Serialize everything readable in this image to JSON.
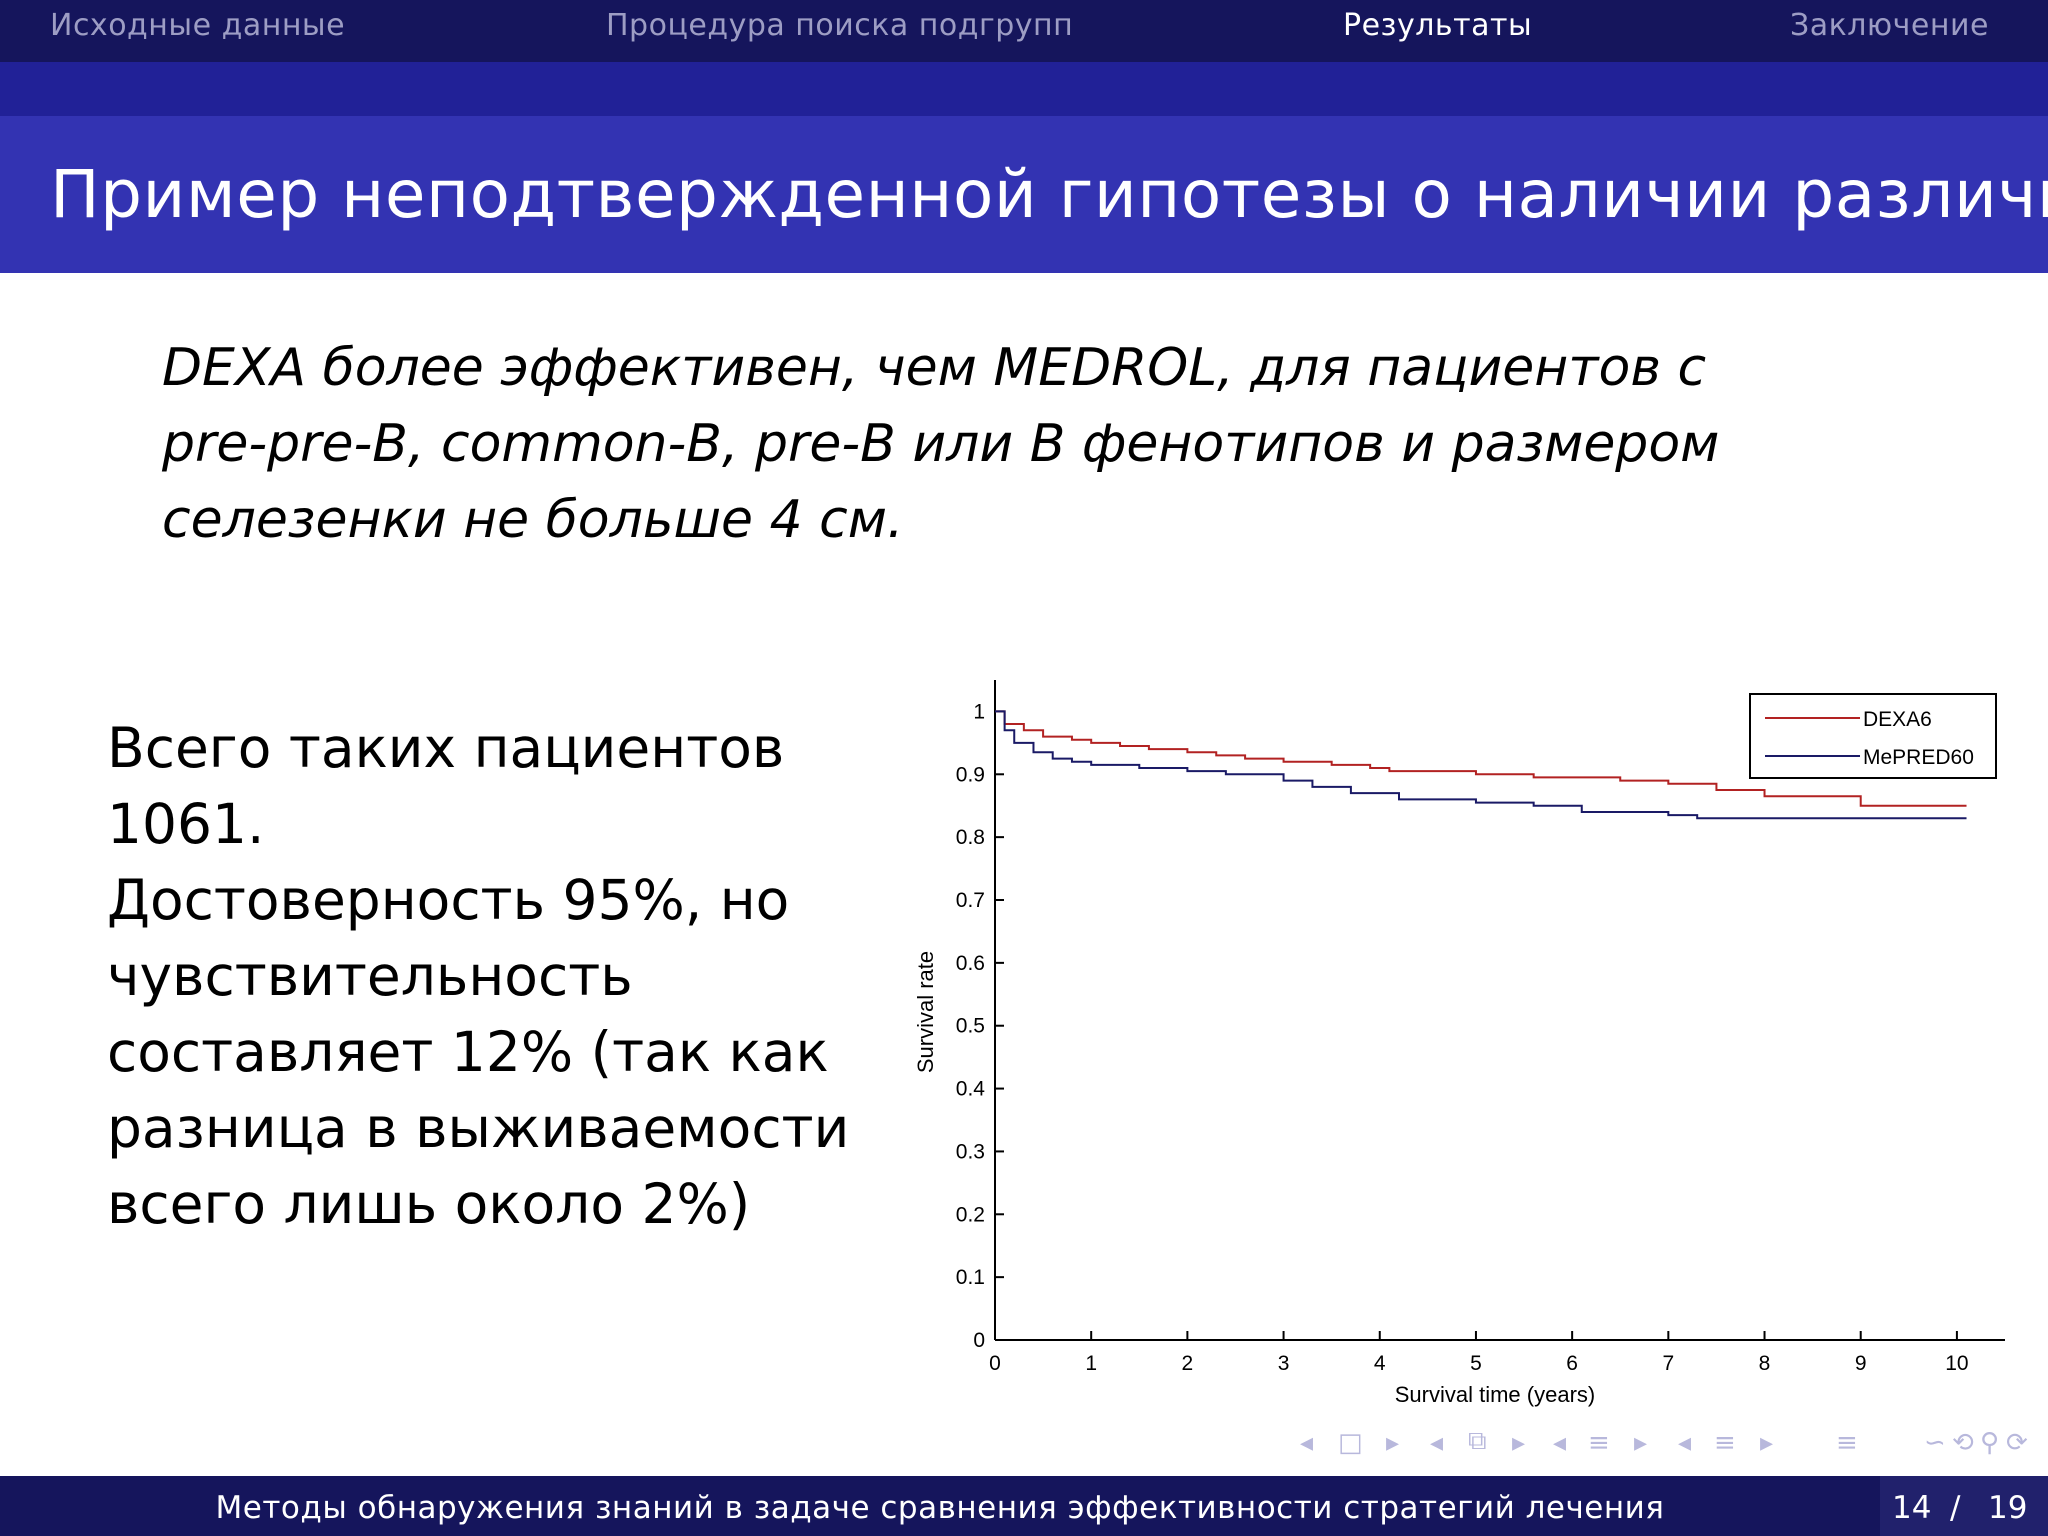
{
  "nav": {
    "items": [
      "Исходные данные",
      "Процедура поиска подгрупп",
      "Результаты",
      "Заключение"
    ],
    "active": "Результаты"
  },
  "slide": {
    "title": "Пример неподтвержденной гипотезы о наличии различий",
    "hypothesis_lines": [
      "DEXA более эффективен, чем MEDROL, для пациентов с",
      "pre-pre-B, common-B, pre-B или B фенотипов и размером",
      "селезенки не больше 4 см."
    ],
    "body_lines": [
      "Всего таких пациентов",
      "1061.",
      "Достоверность 95%, но",
      "чувствительность",
      "составляет 12% (так как",
      "разница в выживаемости",
      "всего лишь около 2%)"
    ]
  },
  "chart_data": {
    "type": "line",
    "xlabel": "Survival time (years)",
    "ylabel": "Survival rate",
    "xlim": [
      0,
      10.5
    ],
    "ylim": [
      0,
      1.05
    ],
    "x_ticks": [
      "0",
      "1",
      "2",
      "3",
      "4",
      "5",
      "6",
      "7",
      "8",
      "9",
      "10"
    ],
    "y_ticks": [
      "0",
      "0.1",
      "0.2",
      "0.3",
      "0.4",
      "0.5",
      "0.6",
      "0.7",
      "0.8",
      "0.9",
      "1"
    ],
    "grid": false,
    "legend": "top-right",
    "series": [
      {
        "name": "DEXA6",
        "color": "#b22222",
        "points": [
          [
            0,
            1.0
          ],
          [
            0.1,
            0.98
          ],
          [
            0.3,
            0.97
          ],
          [
            0.5,
            0.96
          ],
          [
            0.8,
            0.955
          ],
          [
            1.0,
            0.95
          ],
          [
            1.3,
            0.945
          ],
          [
            1.6,
            0.94
          ],
          [
            2.0,
            0.935
          ],
          [
            2.3,
            0.93
          ],
          [
            2.6,
            0.925
          ],
          [
            3.0,
            0.92
          ],
          [
            3.5,
            0.915
          ],
          [
            3.9,
            0.91
          ],
          [
            4.1,
            0.905
          ],
          [
            5.0,
            0.9
          ],
          [
            5.6,
            0.895
          ],
          [
            6.5,
            0.89
          ],
          [
            7.0,
            0.885
          ],
          [
            7.5,
            0.875
          ],
          [
            8.0,
            0.865
          ],
          [
            9.0,
            0.85
          ],
          [
            10.1,
            0.85
          ]
        ]
      },
      {
        "name": "MePRED60",
        "color": "#1a1a66",
        "points": [
          [
            0,
            1.0
          ],
          [
            0.1,
            0.97
          ],
          [
            0.2,
            0.95
          ],
          [
            0.4,
            0.935
          ],
          [
            0.6,
            0.925
          ],
          [
            0.8,
            0.92
          ],
          [
            1.0,
            0.915
          ],
          [
            1.5,
            0.91
          ],
          [
            2.0,
            0.905
          ],
          [
            2.4,
            0.9
          ],
          [
            3.0,
            0.89
          ],
          [
            3.3,
            0.88
          ],
          [
            3.7,
            0.87
          ],
          [
            4.2,
            0.86
          ],
          [
            5.0,
            0.855
          ],
          [
            5.6,
            0.85
          ],
          [
            6.1,
            0.84
          ],
          [
            7.0,
            0.835
          ],
          [
            7.3,
            0.83
          ],
          [
            8.0,
            0.83
          ],
          [
            10.1,
            0.83
          ]
        ]
      }
    ]
  },
  "nav_symbols": [
    "◂",
    "□",
    "▸",
    "◂",
    "⧉",
    "▸",
    "◂",
    "≡",
    "▸",
    "◂",
    "≡",
    "▸",
    "≡",
    "∽",
    "⟲",
    "⚲",
    "⟳"
  ],
  "footer": {
    "title": "Методы обнаружения знаний в задаче сравнения эффективности стратегий лечения",
    "page_current": "14",
    "page_separator": "/",
    "page_total": "19"
  }
}
